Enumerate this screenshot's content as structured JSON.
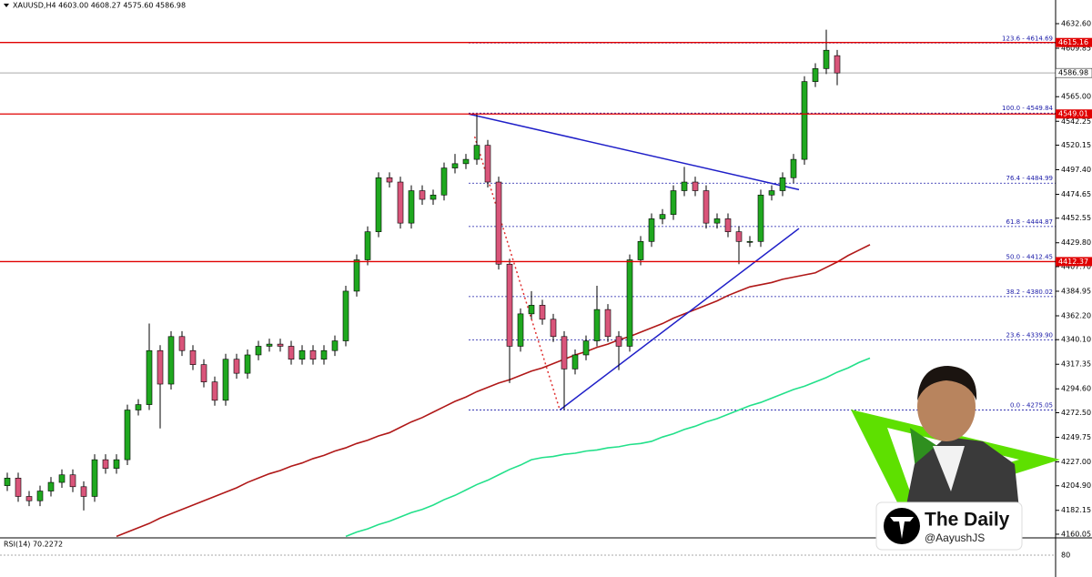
{
  "chart_data": {
    "type": "candlestick",
    "title": "XAUUSD,H4  4603.00 4608.27 4575.60 4586.98",
    "ylim": [
      4157.5,
      4654.5
    ],
    "yticks": [
      {
        "value": 4632.6,
        "label": "4632.60"
      },
      4609.85,
      {
        "value": 4565,
        "label": "4565.00"
      },
      4542.25,
      4520.15,
      {
        "value": 4497.4,
        "label": "4497.40"
      },
      4474.65,
      4452.55,
      {
        "value": 4429.8,
        "label": "4429.80"
      },
      {
        "value": 4407.7,
        "label": "4407.70"
      },
      4384.95,
      {
        "value": 4362.2,
        "label": "4362.20"
      },
      {
        "value": 4340.1,
        "label": "4340.10"
      },
      4317.35,
      {
        "value": 4294.6,
        "label": "4294.60"
      },
      {
        "value": 4272.5,
        "label": "4272.50"
      },
      4249.75,
      {
        "value": 4227,
        "label": "4227.00"
      },
      {
        "value": 4204.9,
        "label": "4204.90"
      },
      4182.15,
      4160.05
    ],
    "up_color": "#1fa81f",
    "down_color": "#d9557a",
    "open": [
      4205,
      4212,
      4195,
      4191,
      4200,
      4208,
      4215,
      4204,
      4195,
      4229,
      4221,
      4229,
      4275,
      4280,
      4330,
      4299,
      4343,
      4330,
      4317,
      4301,
      4284,
      4322,
      4309,
      4326,
      4334,
      4336,
      4334,
      4322,
      4330,
      4322,
      4330,
      4339,
      4385,
      4414,
      4440,
      4490,
      4486,
      4448,
      4478,
      4470,
      4474,
      4499,
      4503,
      4507,
      4520,
      4486,
      4410,
      4334,
      4364,
      4372,
      4359,
      4343,
      4313,
      4326,
      4339,
      4368,
      4343,
      4334,
      4414,
      4431,
      4452,
      4456,
      4478,
      4486,
      4478,
      4448,
      4452,
      4440,
      4431,
      4431,
      4474,
      4478,
      4490,
      4507,
      4579,
      4591,
      4603,
      null,
      null,
      null
    ],
    "high": [
      4217,
      4217,
      4200,
      4205,
      4213,
      4220,
      4220,
      4209,
      4234,
      4234,
      4234,
      4280,
      4285,
      4355,
      4335,
      4348,
      4348,
      4335,
      4322,
      4306,
      4327,
      4327,
      4331,
      4339,
      4341,
      4341,
      4339,
      4335,
      4335,
      4335,
      4344,
      4390,
      4419,
      4445,
      4495,
      4495,
      4491,
      4483,
      4483,
      4479,
      4504,
      4512,
      4512,
      4549,
      4525,
      4491,
      4415,
      4369,
      4385,
      4377,
      4364,
      4348,
      4331,
      4344,
      4390,
      4373,
      4348,
      4419,
      4436,
      4457,
      4461,
      4483,
      4500,
      4491,
      4483,
      4457,
      4457,
      4445,
      4436,
      4479,
      4483,
      4495,
      4512,
      4584,
      4596,
      4627,
      4608.27,
      null,
      null,
      null
    ],
    "low": [
      4200,
      4190,
      4186,
      4186,
      4195,
      4203,
      4199,
      4182,
      4190,
      4216,
      4216,
      4224,
      4270,
      4275,
      4258,
      4294,
      4325,
      4312,
      4296,
      4279,
      4279,
      4304,
      4304,
      4321,
      4329,
      4329,
      4317,
      4317,
      4317,
      4317,
      4325,
      4334,
      4380,
      4409,
      4435,
      4481,
      4443,
      4443,
      4465,
      4465,
      4469,
      4494,
      4498,
      4502,
      4481,
      4405,
      4300,
      4329,
      4359,
      4354,
      4338,
      4275,
      4308,
      4321,
      4334,
      4338,
      4312,
      4329,
      4409,
      4426,
      4447,
      4451,
      4473,
      4473,
      4443,
      4443,
      4435,
      4410,
      4426,
      4426,
      4469,
      4473,
      4485,
      4502,
      4574,
      4586,
      4575.6,
      null,
      null,
      null
    ],
    "close": [
      4212,
      4195,
      4191,
      4200,
      4208,
      4215,
      4204,
      4195,
      4229,
      4221,
      4229,
      4275,
      4280,
      4330,
      4299,
      4343,
      4330,
      4317,
      4301,
      4284,
      4322,
      4309,
      4326,
      4334,
      4336,
      4334,
      4322,
      4330,
      4322,
      4330,
      4339,
      4385,
      4414,
      4440,
      4490,
      4486,
      4448,
      4478,
      4470,
      4474,
      4499,
      4503,
      4507,
      4520,
      4486,
      4410,
      4334,
      4364,
      4372,
      4359,
      4343,
      4313,
      4326,
      4339,
      4368,
      4343,
      4334,
      4414,
      4431,
      4452,
      4456,
      4478,
      4486,
      4478,
      4448,
      4452,
      4440,
      4431,
      4431,
      4474,
      4478,
      4490,
      4507,
      4579,
      4591,
      4608,
      4586.98,
      null,
      null,
      null
    ],
    "series": [
      {
        "color": "#b01818",
        "values": [
          null,
          null,
          null,
          null,
          null,
          null,
          null,
          null,
          null,
          null,
          4158,
          4162,
          4166,
          4170,
          4175,
          4179,
          4183,
          4187,
          4191,
          4195,
          4199,
          4203,
          4208,
          4212,
          4216,
          4219,
          4223,
          4226,
          4230,
          4233,
          4237,
          4240,
          4244,
          4247,
          4251,
          4254,
          4259,
          4264,
          4268,
          4273,
          4278,
          4283,
          4287,
          4292,
          4296,
          4300,
          4303,
          4307,
          4311,
          4314,
          4318,
          4322,
          4326,
          4329,
          4333,
          4336,
          4340,
          4343,
          4347,
          4351,
          4355,
          4360,
          4364,
          4368,
          4372,
          4376,
          4381,
          4385,
          4389,
          4391,
          4393,
          4396,
          4398,
          4400,
          4402,
          4407,
          4412,
          4418,
          4423,
          4428
        ]
      },
      {
        "color": "#22e08a",
        "values": [
          null,
          null,
          null,
          null,
          null,
          null,
          null,
          null,
          null,
          null,
          null,
          null,
          null,
          null,
          null,
          null,
          null,
          null,
          null,
          null,
          null,
          null,
          null,
          null,
          null,
          null,
          null,
          null,
          null,
          null,
          null,
          4158,
          4162,
          4165,
          4169,
          4172,
          4176,
          4180,
          4183,
          4187,
          4192,
          4196,
          4201,
          4206,
          4210,
          4215,
          4220,
          4224,
          4229,
          4231,
          4232,
          4234,
          4235,
          4237,
          4238,
          4240,
          4241,
          4243,
          4244,
          4246,
          4250,
          4253,
          4257,
          4260,
          4264,
          4267,
          4271,
          4275,
          4279,
          4282,
          4286,
          4290,
          4294,
          4297,
          4301,
          4305,
          4310,
          4314,
          4319,
          4323
        ]
      }
    ],
    "price_lines": [
      4615.16,
      4549.01,
      4412.37
    ],
    "price_line_color": "#e00000",
    "current_price": 4586.98,
    "fib_levels": [
      {
        "value": 4614.69,
        "label": "123.6 - 4614.69"
      },
      {
        "value": 4549.84,
        "label": "100.0 - 4549.84"
      },
      {
        "value": 4484.99,
        "label": "76.4 - 4484.99"
      },
      {
        "value": 4444.87,
        "label": "61.8 - 4444.87"
      },
      {
        "value": 4412.45,
        "label": "50.0 - 4412.45"
      },
      {
        "value": 4380.02,
        "label": "38.2 - 4380.02"
      },
      {
        "value": 4339.9,
        "label": "23.6 - 4339.90"
      },
      {
        "value": 4275.05,
        "label": "0.0 - 4275.05"
      }
    ],
    "fib_color": "#1a1aa8",
    "trendlines": [
      {
        "color": "#1f1fc8",
        "from": [
          42.25,
          4549
        ],
        "to": [
          72.5,
          4479
        ]
      },
      {
        "color": "#1f1fc8",
        "from": [
          50.6,
          4275
        ],
        "to": [
          72.5,
          4443
        ]
      },
      {
        "color": "#e03030",
        "from": [
          42.8,
          4528
        ],
        "to": [
          50.6,
          4275
        ]
      }
    ],
    "rsi_label": "RSI(14) 70.2272",
    "rsi_ylim": [
      52,
      101
    ],
    "rsi_ticks": [
      80
    ]
  },
  "brand": {
    "name": "The Daily",
    "handle": "@AayushJS"
  }
}
